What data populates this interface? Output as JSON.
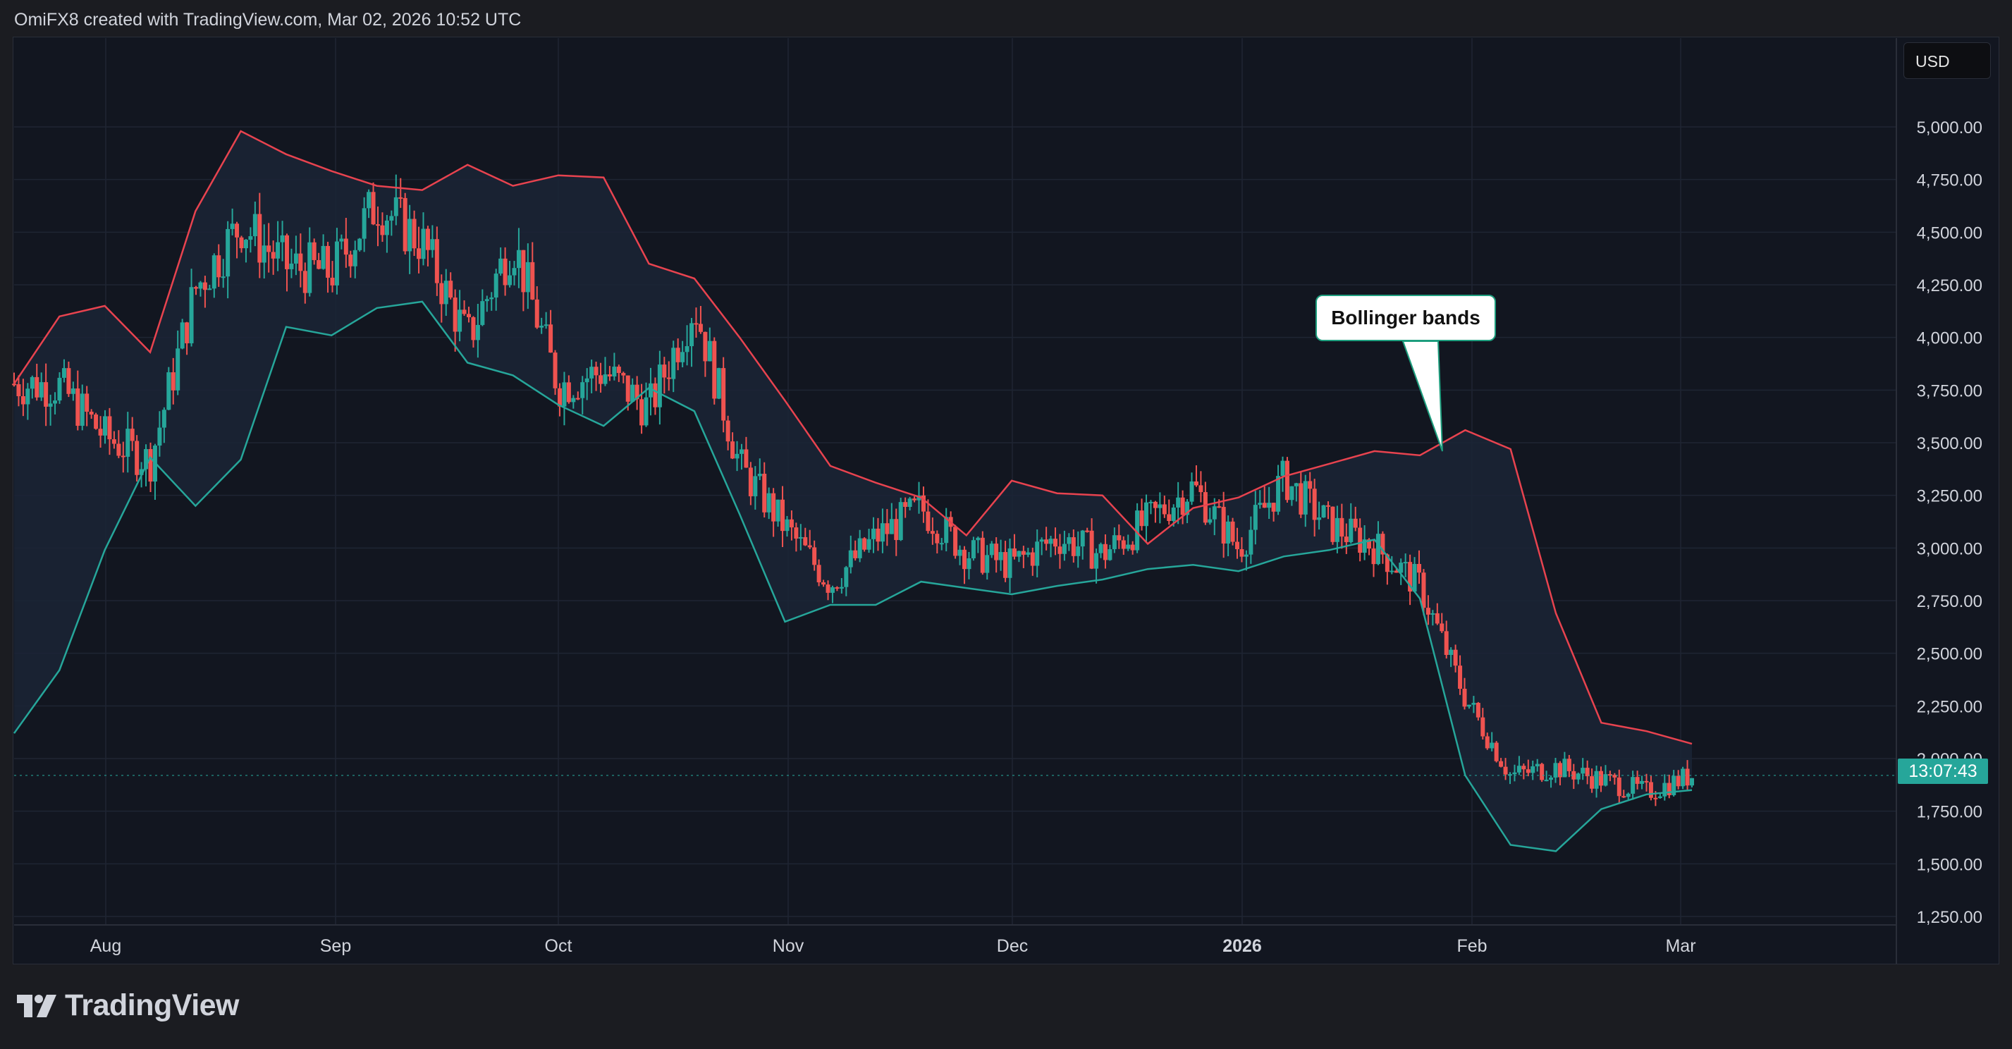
{
  "header": {
    "text": "OmiFX8 created with TradingView.com, Mar 02, 2026 10:52 UTC"
  },
  "price_axis": {
    "currency": "USD"
  },
  "last_price_label": "13:07:43",
  "annotation": {
    "text": "Bollinger bands"
  },
  "footer": {
    "brand": "TradingView"
  },
  "colors": {
    "up": "#26a69a",
    "down": "#ef5350",
    "upper_band": "#e8434f",
    "lower_band": "#26a69a",
    "band_fill": "#1b2536",
    "grid": "#1f2533"
  },
  "chart_data": {
    "type": "candlestick",
    "title": "",
    "xlabel": "",
    "ylabel": "",
    "ylim": [
      1200,
      5200
    ],
    "y_ticks": [
      "1,250.00",
      "1,500.00",
      "1,750.00",
      "2,000.00",
      "2,250.00",
      "2,500.00",
      "2,750.00",
      "3,000.00",
      "3,250.00",
      "3,500.00",
      "3,750.00",
      "4,000.00",
      "4,250.00",
      "4,500.00",
      "4,750.00",
      "5,000.00"
    ],
    "x_ticks": [
      "Aug",
      "Sep",
      "Oct",
      "Nov",
      "Dec",
      "2026",
      "Feb",
      "Mar"
    ],
    "grid": true,
    "series": [
      {
        "name": "Upper band",
        "values": [
          3780,
          4100,
          4150,
          3930,
          4600,
          4980,
          4870,
          4790,
          4720,
          4700,
          4820,
          4720,
          4770,
          4760,
          4350,
          4280,
          4000,
          3700,
          3390,
          3310,
          3240,
          3060,
          3320,
          3260,
          3250,
          3020,
          3190,
          3240,
          3340,
          3400,
          3460,
          3440,
          3560,
          3470,
          2690,
          2170,
          2130,
          2070
        ]
      },
      {
        "name": "Lower band",
        "values": [
          2120,
          2420,
          2990,
          3430,
          3200,
          3420,
          4050,
          4010,
          4140,
          4170,
          3880,
          3820,
          3680,
          3580,
          3760,
          3650,
          3160,
          2650,
          2730,
          2730,
          2840,
          2810,
          2780,
          2820,
          2850,
          2900,
          2920,
          2890,
          2960,
          2990,
          3040,
          2760,
          1920,
          1590,
          1560,
          1760,
          1830,
          1850
        ]
      },
      {
        "name": "Close",
        "values": [
          3780,
          3770,
          3530,
          3410,
          4230,
          4540,
          4340,
          4310,
          4640,
          4450,
          3990,
          4460,
          3770,
          3840,
          3660,
          4160,
          3390,
          3100,
          2830,
          3050,
          3190,
          2980,
          2920,
          3050,
          2970,
          3130,
          3290,
          3000,
          3330,
          3110,
          3010,
          2820,
          2290,
          1920,
          1960,
          1900,
          1840,
          1920
        ]
      }
    ]
  }
}
